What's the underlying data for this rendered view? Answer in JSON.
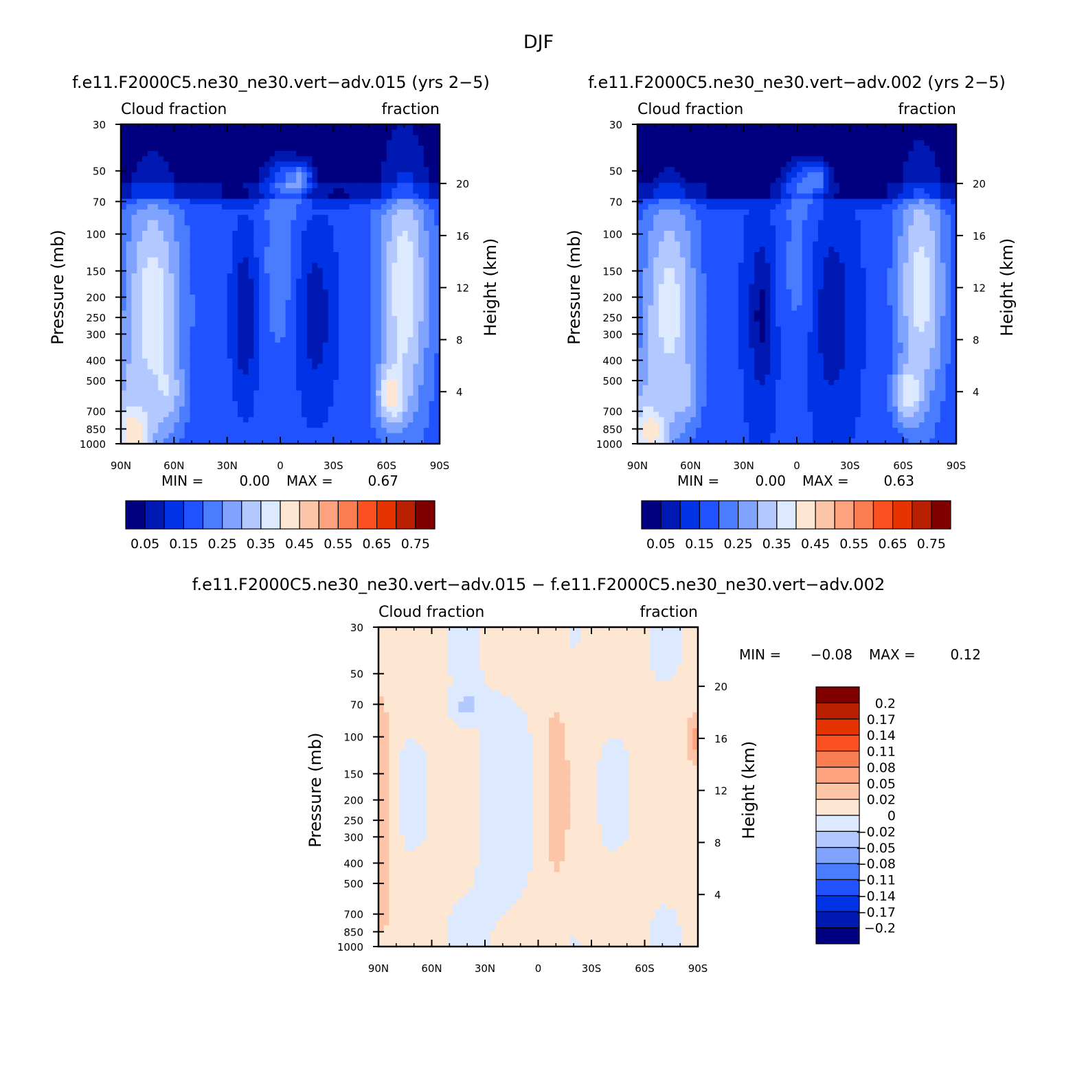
{
  "figure": {
    "title": "DJF",
    "diff_title": "f.e11.F2000C5.ne30_ne30.vert−adv.015 − f.e11.F2000C5.ne30_ne30.vert−adv.002"
  },
  "chart_data": [
    {
      "type": "heatmap",
      "name": "panel-015",
      "title": "f.e11.F2000C5.ne30_ne30.vert−adv.015 (yrs 2−5)",
      "left_subtitle": "Cloud fraction",
      "right_subtitle": "fraction",
      "xlabel": "",
      "ylabel": "Pressure (mb)",
      "ylabel_right": "Height (km)",
      "x_ticks": [
        "90N",
        "60N",
        "30N",
        "0",
        "30S",
        "60S",
        "90S"
      ],
      "x_range": [
        90,
        -90
      ],
      "y_ticks": [
        30,
        50,
        70,
        100,
        150,
        200,
        250,
        300,
        400,
        500,
        700,
        850,
        1000
      ],
      "y_range": [
        30,
        1000
      ],
      "y_scale": "log",
      "y_right_ticks": [
        20,
        16,
        12,
        8,
        4
      ],
      "min_label": "MIN =",
      "min_value": "0.00",
      "max_label": "MAX =",
      "max_value": "0.67",
      "colorbar": {
        "orientation": "horizontal",
        "labels": [
          "0.05",
          "0.15",
          "0.25",
          "0.35",
          "0.45",
          "0.55",
          "0.65",
          "0.75"
        ],
        "colors": [
          "#000080",
          "#0019b3",
          "#0033e6",
          "#2052ff",
          "#4a7cff",
          "#7fa3ff",
          "#b3c8ff",
          "#dce9ff",
          "#fde6d2",
          "#fcc5a7",
          "#fca27e",
          "#fa7e52",
          "#fc5020",
          "#e63400",
          "#b82000",
          "#800000"
        ]
      },
      "variant": 0
    },
    {
      "type": "heatmap",
      "name": "panel-002",
      "title": "f.e11.F2000C5.ne30_ne30.vert−adv.002 (yrs 2−5)",
      "left_subtitle": "Cloud fraction",
      "right_subtitle": "fraction",
      "xlabel": "",
      "ylabel": "Pressure (mb)",
      "ylabel_right": "Height (km)",
      "x_ticks": [
        "90N",
        "60N",
        "30N",
        "0",
        "30S",
        "60S",
        "90S"
      ],
      "x_range": [
        90,
        -90
      ],
      "y_ticks": [
        30,
        50,
        70,
        100,
        150,
        200,
        250,
        300,
        400,
        500,
        700,
        850,
        1000
      ],
      "y_range": [
        30,
        1000
      ],
      "y_scale": "log",
      "y_right_ticks": [
        20,
        16,
        12,
        8,
        4
      ],
      "min_label": "MIN =",
      "min_value": "0.00",
      "max_label": "MAX =",
      "max_value": "0.63",
      "colorbar": {
        "orientation": "horizontal",
        "labels": [
          "0.05",
          "0.15",
          "0.25",
          "0.35",
          "0.45",
          "0.55",
          "0.65",
          "0.75"
        ],
        "colors": [
          "#000080",
          "#0019b3",
          "#0033e6",
          "#2052ff",
          "#4a7cff",
          "#7fa3ff",
          "#b3c8ff",
          "#dce9ff",
          "#fde6d2",
          "#fcc5a7",
          "#fca27e",
          "#fa7e52",
          "#fc5020",
          "#e63400",
          "#b82000",
          "#800000"
        ]
      },
      "variant": 1
    },
    {
      "type": "heatmap",
      "name": "panel-diff",
      "left_subtitle": "Cloud fraction",
      "right_subtitle": "fraction",
      "xlabel": "",
      "ylabel": "Pressure (mb)",
      "ylabel_right": "Height (km)",
      "x_ticks": [
        "90N",
        "60N",
        "30N",
        "0",
        "30S",
        "60S",
        "90S"
      ],
      "x_range": [
        90,
        -90
      ],
      "y_ticks": [
        30,
        50,
        70,
        100,
        150,
        200,
        250,
        300,
        400,
        500,
        700,
        850,
        1000
      ],
      "y_range": [
        30,
        1000
      ],
      "y_scale": "log",
      "y_right_ticks": [
        20,
        16,
        12,
        8,
        4
      ],
      "min_label": "MIN =",
      "min_value": "−0.08",
      "max_label": "MAX =",
      "max_value": "0.12",
      "colorbar": {
        "orientation": "vertical",
        "labels": [
          "0.2",
          "0.17",
          "0.14",
          "0.11",
          "0.08",
          "0.05",
          "0.02",
          "0",
          "−0.02",
          "−0.05",
          "−0.08",
          "−0.11",
          "−0.14",
          "−0.17",
          "−0.2"
        ],
        "colors": [
          "#800000",
          "#b82000",
          "#e63400",
          "#fc5020",
          "#fa7e52",
          "#fca27e",
          "#fcc5a7",
          "#fde6d2",
          "#dce9ff",
          "#b3c8ff",
          "#7fa3ff",
          "#4a7cff",
          "#2052ff",
          "#0033e6",
          "#0019b3",
          "#000080"
        ]
      }
    }
  ]
}
